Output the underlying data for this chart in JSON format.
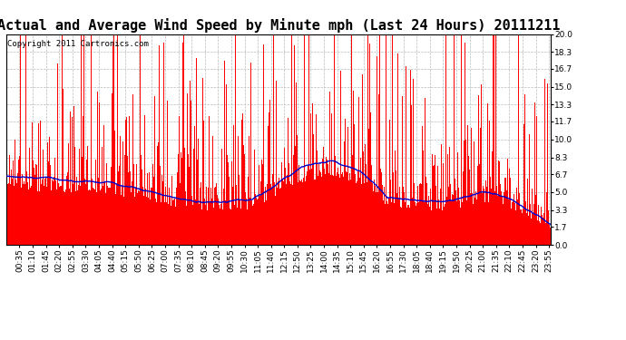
{
  "title": "Actual and Average Wind Speed by Minute mph (Last 24 Hours) 20111211",
  "copyright": "Copyright 2011 Cartronics.com",
  "yticks": [
    0.0,
    1.7,
    3.3,
    5.0,
    6.7,
    8.3,
    10.0,
    11.7,
    13.3,
    15.0,
    16.7,
    18.3,
    20.0
  ],
  "ymax": 20.0,
  "ymin": 0.0,
  "bar_color": "#FF0000",
  "avg_color": "#0000CC",
  "background_color": "#FFFFFF",
  "grid_color": "#BBBBBB",
  "title_fontsize": 11,
  "copyright_fontsize": 6.5,
  "tick_fontsize": 6.5,
  "num_minutes": 1440,
  "seed": 99
}
